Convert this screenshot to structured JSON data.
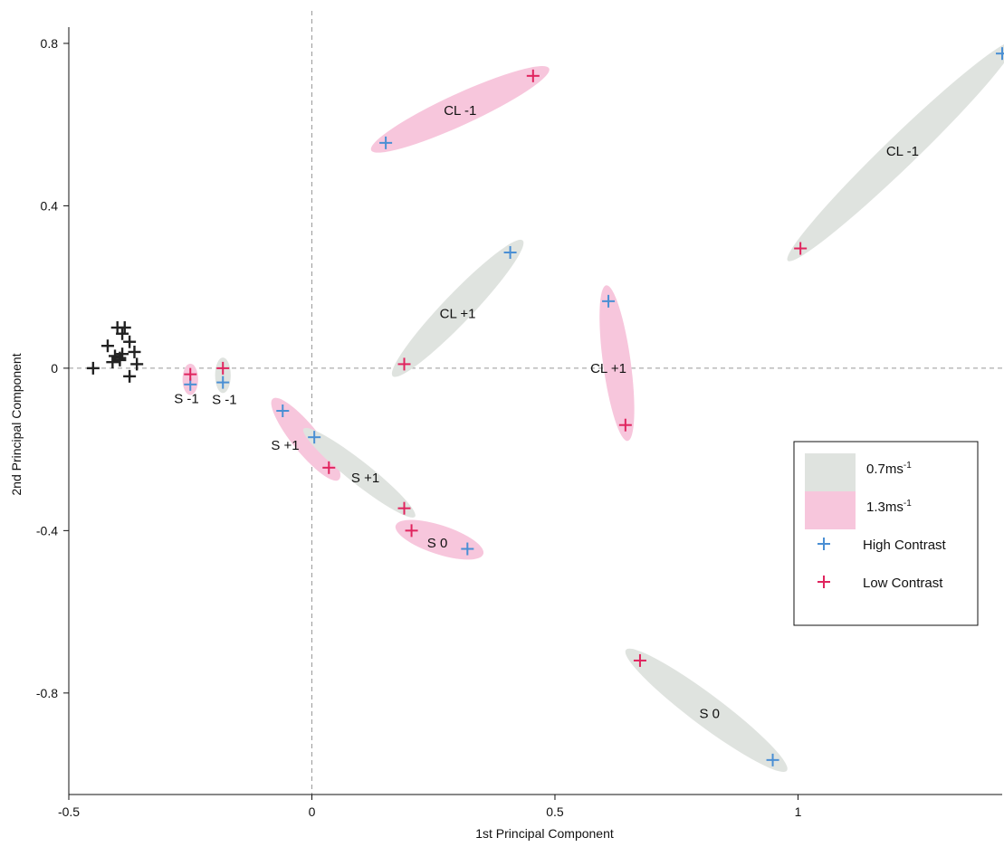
{
  "chart_data": {
    "type": "scatter",
    "xlabel": "1st Principal Component",
    "ylabel": "2nd Principal Component",
    "xlim": [
      -0.5,
      1.42
    ],
    "ylim": [
      -1.05,
      0.84
    ],
    "xticks": [
      {
        "value": -0.5,
        "label": "-0.5"
      },
      {
        "value": 0,
        "label": "0"
      },
      {
        "value": 0.5,
        "label": "0.5"
      },
      {
        "value": 1,
        "label": "1"
      }
    ],
    "yticks": [
      {
        "value": 0.8,
        "label": "0.8"
      },
      {
        "value": 0.4,
        "label": "0.4"
      },
      {
        "value": 0,
        "label": "0"
      },
      {
        "value": -0.4,
        "label": "-0.4"
      },
      {
        "value": -0.8,
        "label": "-0.8"
      }
    ],
    "reference_lines": {
      "x": 0,
      "y": 0,
      "style": "dashed"
    },
    "colors": {
      "high_contrast": "#4a8fd4",
      "low_contrast": "#e0245e",
      "baseline": "#222222",
      "speed_slow": "#dfe3df",
      "speed_fast": "#f7c6dc"
    },
    "groups": [
      {
        "label": "CL -1",
        "speed": "1.3ms-1",
        "x1": 0.155,
        "y1": 0.555,
        "x2": 0.455,
        "y2": 0.72,
        "width": 0.07,
        "label_x": 0.305,
        "label_y": 0.635
      },
      {
        "label": "CL -1",
        "speed": "0.7ms-1",
        "x1": 1.005,
        "y1": 0.295,
        "x2": 1.42,
        "y2": 0.775,
        "width": 0.07,
        "label_x": 1.215,
        "label_y": 0.535
      },
      {
        "label": "CL +1",
        "speed": "0.7ms-1",
        "x1": 0.19,
        "y1": 0.01,
        "x2": 0.41,
        "y2": 0.285,
        "width": 0.065,
        "label_x": 0.3,
        "label_y": 0.135
      },
      {
        "label": "CL +1",
        "speed": "1.3ms-1",
        "x1": 0.61,
        "y1": 0.165,
        "x2": 0.645,
        "y2": -0.14,
        "width": 0.062,
        "label_x": 0.61,
        "label_y": 0.0
      },
      {
        "label": "S -1",
        "speed": "1.3ms-1",
        "x1": -0.25,
        "y1": -0.015,
        "x2": -0.25,
        "y2": -0.04,
        "width": 0.035,
        "label_x": -0.258,
        "label_y": -0.075
      },
      {
        "label": "S -1",
        "speed": "0.7ms-1",
        "x1": -0.183,
        "y1": 0.0,
        "x2": -0.183,
        "y2": -0.035,
        "width": 0.035,
        "label_x": -0.18,
        "label_y": -0.077
      },
      {
        "label": "S +1",
        "speed": "1.3ms-1",
        "x1": -0.06,
        "y1": -0.105,
        "x2": 0.035,
        "y2": -0.245,
        "width": 0.06,
        "label_x": -0.055,
        "label_y": -0.19
      },
      {
        "label": "S +1",
        "speed": "0.7ms-1",
        "x1": 0.005,
        "y1": -0.17,
        "x2": 0.19,
        "y2": -0.345,
        "width": 0.05,
        "label_x": 0.11,
        "label_y": -0.27
      },
      {
        "label": "S 0",
        "speed": "1.3ms-1",
        "x1": 0.205,
        "y1": -0.4,
        "x2": 0.32,
        "y2": -0.445,
        "width": 0.065,
        "label_x": 0.258,
        "label_y": -0.43
      },
      {
        "label": "S 0",
        "speed": "0.7ms-1",
        "x1": 0.675,
        "y1": -0.72,
        "x2": 0.948,
        "y2": -0.965,
        "width": 0.07,
        "label_x": 0.818,
        "label_y": -0.85
      }
    ],
    "series": [
      {
        "name": "High Contrast",
        "points": [
          [
            0.152,
            0.555
          ],
          [
            1.42,
            0.775
          ],
          [
            0.408,
            0.285
          ],
          [
            0.61,
            0.165
          ],
          [
            -0.25,
            -0.04
          ],
          [
            -0.183,
            -0.035
          ],
          [
            -0.06,
            -0.105
          ],
          [
            0.005,
            -0.17
          ],
          [
            0.32,
            -0.445
          ],
          [
            0.948,
            -0.965
          ]
        ]
      },
      {
        "name": "Low Contrast",
        "points": [
          [
            0.455,
            0.72
          ],
          [
            1.005,
            0.295
          ],
          [
            0.19,
            0.01
          ],
          [
            0.645,
            -0.14
          ],
          [
            -0.25,
            -0.015
          ],
          [
            -0.183,
            0.0
          ],
          [
            0.035,
            -0.245
          ],
          [
            0.19,
            -0.345
          ],
          [
            0.205,
            -0.4
          ],
          [
            0.675,
            -0.72
          ]
        ]
      },
      {
        "points": [
          [
            -0.45,
            0.0
          ],
          [
            -0.42,
            0.055
          ],
          [
            -0.4,
            0.1
          ],
          [
            -0.385,
            0.1
          ],
          [
            -0.39,
            0.085
          ],
          [
            -0.375,
            0.065
          ],
          [
            -0.365,
            0.04
          ],
          [
            -0.375,
            -0.02
          ],
          [
            -0.36,
            0.01
          ],
          [
            -0.405,
            0.03
          ],
          [
            -0.395,
            0.02
          ],
          [
            -0.39,
            0.035
          ],
          [
            -0.41,
            0.015
          ],
          [
            -0.395,
            0.025
          ]
        ]
      }
    ],
    "legend": {
      "position": "right",
      "entries": [
        {
          "kind": "patch",
          "label": "0.7ms",
          "superscript": "-1",
          "color": "#dfe3df"
        },
        {
          "kind": "patch",
          "label": "1.3ms",
          "superscript": "-1",
          "color": "#f7c6dc"
        },
        {
          "kind": "marker",
          "label": "High Contrast",
          "color": "#4a8fd4"
        },
        {
          "kind": "marker",
          "label": "Low Contrast",
          "color": "#e0245e"
        }
      ]
    },
    "grid": false
  }
}
